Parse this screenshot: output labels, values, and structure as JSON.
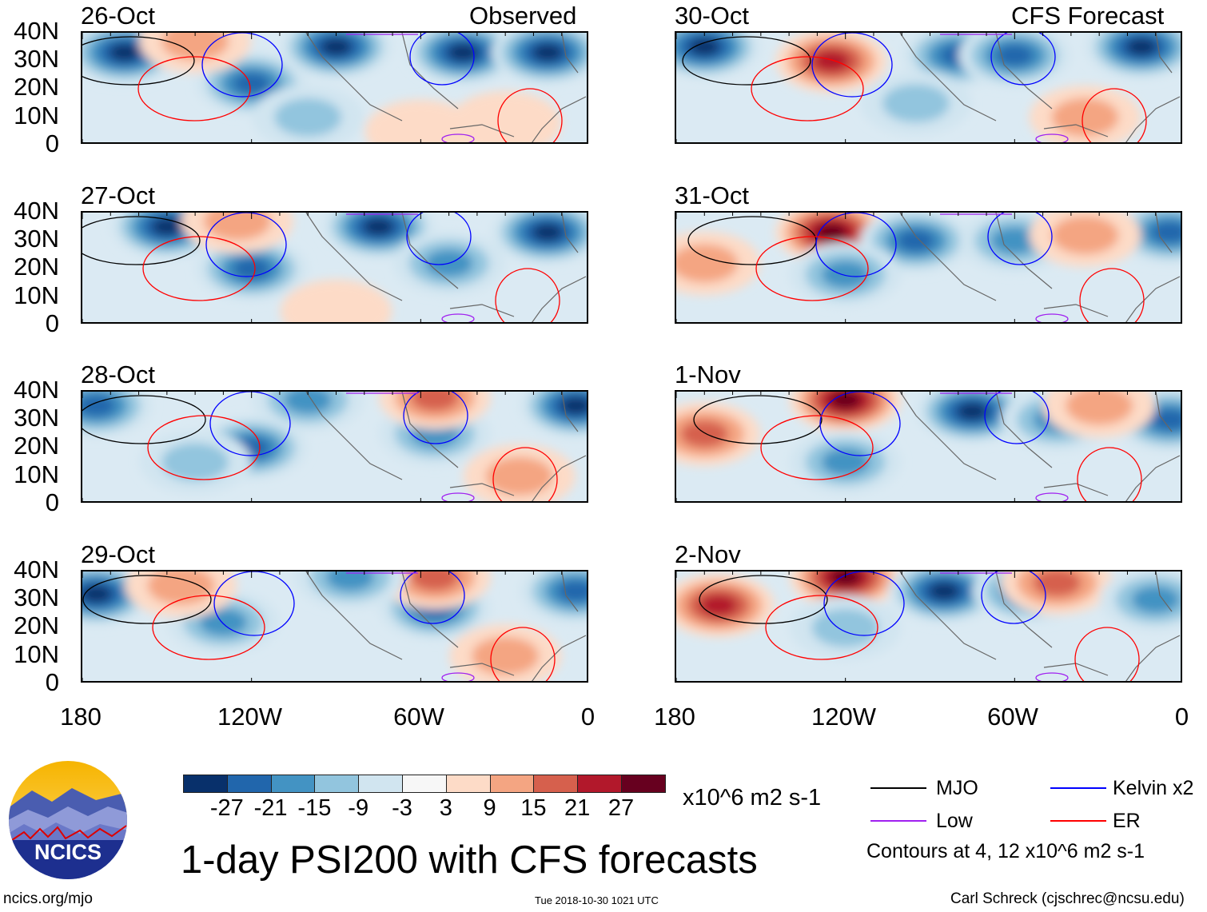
{
  "header": {
    "left_label": "Observed",
    "right_label": "CFS Forecast"
  },
  "panels": [
    {
      "date": "26-Oct",
      "column": "observed"
    },
    {
      "date": "27-Oct",
      "column": "observed"
    },
    {
      "date": "28-Oct",
      "column": "observed"
    },
    {
      "date": "29-Oct",
      "column": "observed"
    },
    {
      "date": "30-Oct",
      "column": "forecast"
    },
    {
      "date": "31-Oct",
      "column": "forecast"
    },
    {
      "date": "1-Nov",
      "column": "forecast"
    },
    {
      "date": "2-Nov",
      "column": "forecast"
    }
  ],
  "lat_labels": [
    "40N",
    "30N",
    "20N",
    "10N",
    "0"
  ],
  "lon_labels": [
    "180",
    "120W",
    "60W",
    "0"
  ],
  "colorbar": {
    "colors": [
      "#08306b",
      "#2166ac",
      "#4393c3",
      "#92c5de",
      "#d1e5f0",
      "#f7f7f7",
      "#fddbc7",
      "#f4a582",
      "#d6604d",
      "#b2182b",
      "#67001f"
    ],
    "labels": [
      "-27",
      "-21",
      "-15",
      "-9",
      "-3",
      "3",
      "9",
      "15",
      "21",
      "27"
    ],
    "units": "x10^6 m2 s-1"
  },
  "legend": {
    "items": [
      {
        "label": "MJO",
        "color": "#000000"
      },
      {
        "label": "Kelvin x2",
        "color": "#0000ff"
      },
      {
        "label": "Low",
        "color": "#a020f0"
      },
      {
        "label": "ER",
        "color": "#ff0000"
      }
    ],
    "contours_note": "Contours at 4, 12 x10^6 m2 s-1"
  },
  "title": "1-day PSI200 with CFS forecasts",
  "timestamp": "Tue 2018-10-30 1021 UTC",
  "footer": {
    "url": "ncics.org/mjo",
    "author": "Carl Schreck (cjschrec@ncsu.edu)"
  },
  "logo": {
    "text": "NCICS"
  }
}
